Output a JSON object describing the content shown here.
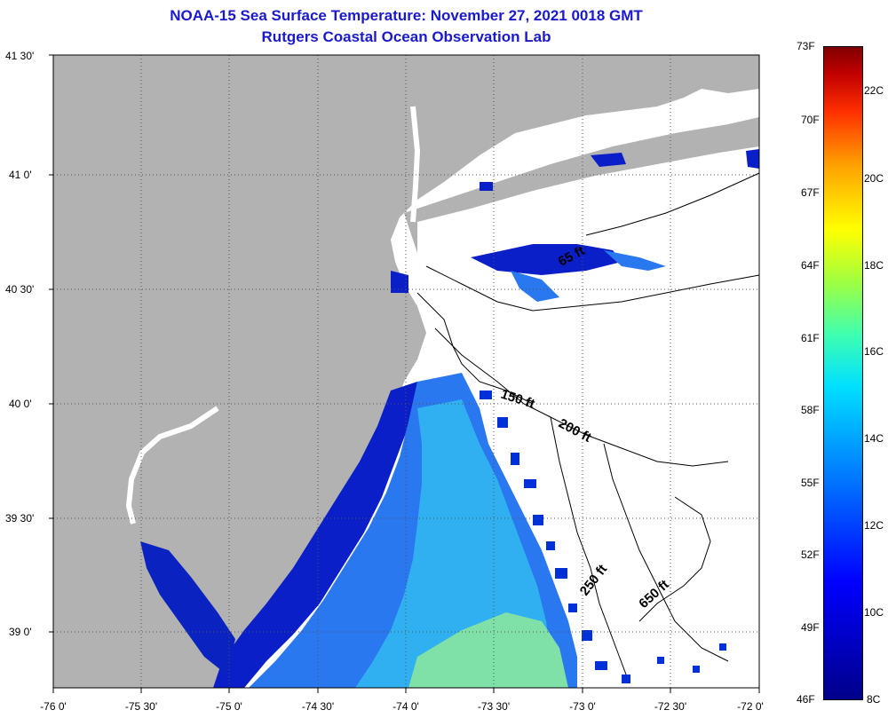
{
  "title_line1": "NOAA-15 Sea Surface Temperature:  November 27, 2021 0018 GMT",
  "title_line2": "Rutgers Coastal Ocean Observation Lab",
  "lat_labels": [
    "41 30'",
    "41 0'",
    "40 30'",
    "40 0'",
    "39 30'",
    "39 0'"
  ],
  "lon_labels": [
    "-76 0'",
    "-75 30'",
    "-75 0'",
    "-74 30'",
    "-74 0'",
    "-73 30'",
    "-73 0'",
    "-72 30'",
    "-72 0'"
  ],
  "contour_labels": [
    "65 ft",
    "150 ft",
    "200 ft",
    "250 ft",
    "650 ft"
  ],
  "colorbar_f": [
    "73F",
    "70F",
    "67F",
    "64F",
    "61F",
    "58F",
    "55F",
    "52F",
    "49F",
    "46F"
  ],
  "colorbar_c": [
    "22C",
    "20C",
    "18C",
    "16C",
    "14C",
    "12C",
    "10C",
    "8C"
  ],
  "colors": {
    "title": "#1a1acc",
    "land": "#b2b2b2",
    "no_data": "#ffffff"
  }
}
